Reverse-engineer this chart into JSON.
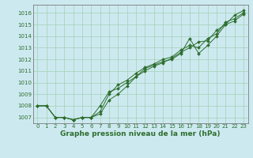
{
  "title": "Graphe pression niveau de la mer (hPa)",
  "bg_color": "#cde9f0",
  "grid_color": "#a8d4bc",
  "line_color": "#2d6e2d",
  "spine_color": "#666666",
  "xlim": [
    -0.5,
    23.5
  ],
  "ylim": [
    1006.5,
    1016.7
  ],
  "yticks": [
    1007,
    1008,
    1009,
    1010,
    1011,
    1012,
    1013,
    1014,
    1015,
    1016
  ],
  "xticks": [
    0,
    1,
    2,
    3,
    4,
    5,
    6,
    7,
    8,
    9,
    10,
    11,
    12,
    13,
    14,
    15,
    16,
    17,
    18,
    19,
    20,
    21,
    22,
    23
  ],
  "series": [
    [
      1008.0,
      1008.0,
      1007.0,
      1007.0,
      1006.8,
      1007.0,
      1007.0,
      1007.3,
      1008.5,
      1009.0,
      1009.7,
      1010.5,
      1011.2,
      1011.5,
      1011.8,
      1012.0,
      1012.5,
      1013.8,
      1012.5,
      1013.2,
      1014.0,
      1015.0,
      1015.8,
      1016.2
    ],
    [
      1008.0,
      1008.0,
      1007.0,
      1007.0,
      1006.8,
      1007.0,
      1007.0,
      1007.5,
      1009.0,
      1009.8,
      1010.2,
      1010.8,
      1011.3,
      1011.6,
      1012.0,
      1012.2,
      1012.8,
      1013.2,
      1013.0,
      1013.8,
      1014.2,
      1015.2,
      1015.5,
      1016.0
    ],
    [
      1008.0,
      1008.0,
      1007.0,
      1007.0,
      1006.8,
      1007.0,
      1007.0,
      1008.0,
      1009.2,
      1009.5,
      1010.0,
      1010.5,
      1011.0,
      1011.4,
      1011.7,
      1012.1,
      1012.6,
      1013.0,
      1013.5,
      1013.6,
      1014.5,
      1015.0,
      1015.3,
      1015.9
    ]
  ],
  "title_fontsize": 6.5,
  "tick_fontsize": 5.0,
  "ylabel_fontsize": 5.5
}
